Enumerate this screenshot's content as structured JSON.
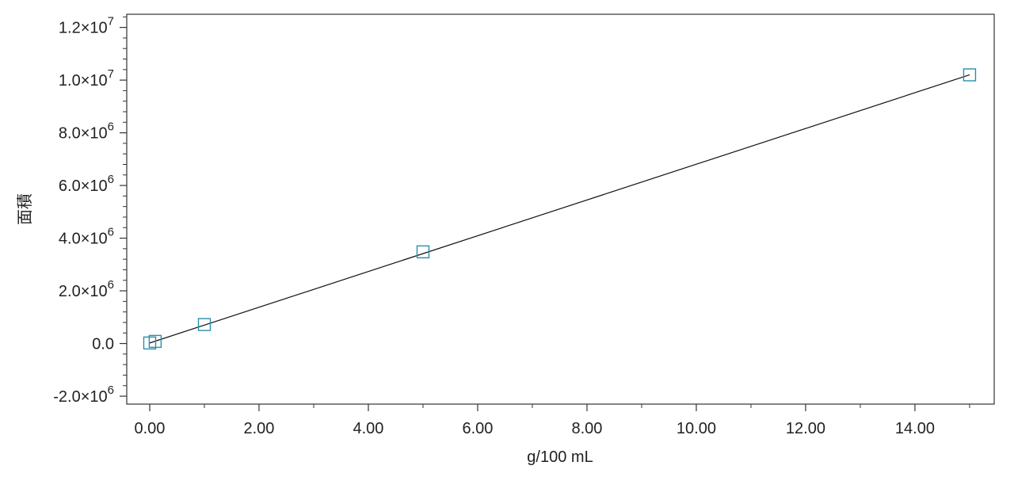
{
  "chart_data": {
    "type": "scatter",
    "title": "",
    "xlabel": "g/100 mL",
    "ylabel": "面積",
    "xlim": [
      -0.42,
      15.45
    ],
    "ylim": [
      -2300000,
      12500000
    ],
    "x_ticks": [
      {
        "value": 0,
        "label": "0.00"
      },
      {
        "value": 2,
        "label": "2.00"
      },
      {
        "value": 4,
        "label": "4.00"
      },
      {
        "value": 6,
        "label": "6.00"
      },
      {
        "value": 8,
        "label": "8.00"
      },
      {
        "value": 10,
        "label": "10.00"
      },
      {
        "value": 12,
        "label": "12.00"
      },
      {
        "value": 14,
        "label": "14.00"
      }
    ],
    "y_ticks": [
      {
        "value": -2000000,
        "mantissa": "-2.0×10",
        "exponent": "6"
      },
      {
        "value": 0,
        "mantissa": "0.0",
        "exponent": ""
      },
      {
        "value": 2000000,
        "mantissa": "2.0×10",
        "exponent": "6"
      },
      {
        "value": 4000000,
        "mantissa": "4.0×10",
        "exponent": "6"
      },
      {
        "value": 6000000,
        "mantissa": "6.0×10",
        "exponent": "6"
      },
      {
        "value": 8000000,
        "mantissa": "8.0×10",
        "exponent": "6"
      },
      {
        "value": 10000000,
        "mantissa": "1.0×10",
        "exponent": "7"
      },
      {
        "value": 12000000,
        "mantissa": "1.2×10",
        "exponent": "7"
      }
    ],
    "series": [
      {
        "marker": "square",
        "color": "#2a8fa8",
        "points": [
          {
            "x": 0.0,
            "y": 20000
          },
          {
            "x": 0.1,
            "y": 80000
          },
          {
            "x": 1.0,
            "y": 720000
          },
          {
            "x": 5.0,
            "y": 3480000
          },
          {
            "x": 15.0,
            "y": 10200000
          }
        ]
      }
    ],
    "fit_line": {
      "x": [
        0.0,
        15.0
      ],
      "y": [
        20000,
        10200000
      ],
      "color": "#111111"
    },
    "grid": false,
    "legend": "none"
  }
}
